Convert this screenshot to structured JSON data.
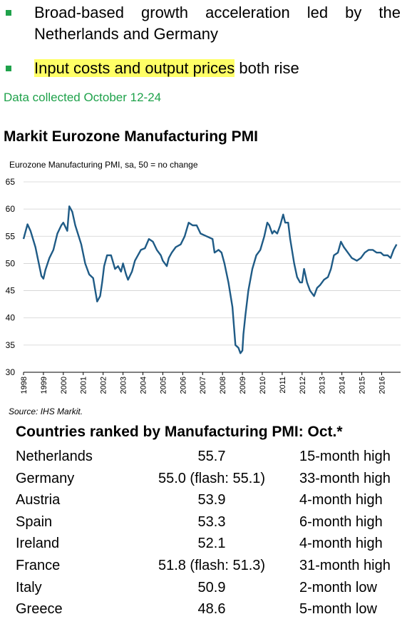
{
  "bullets": [
    {
      "line1": "Broad-based growth acceleration led by the",
      "line2": "Netherlands and Germany"
    },
    {
      "highlight": "Input costs and output prices",
      "rest": " both rise"
    }
  ],
  "data_collected": "Data collected October 12-24",
  "source": "Source: IHS Markit.",
  "colors": {
    "bullet": "#1fa24b",
    "line": "#1f5b86",
    "highlight": "#ffff66",
    "gridline": "#d0d0d0"
  },
  "chart_data": {
    "type": "line",
    "title": "Markit Eurozone Manufacturing PMI",
    "subtitle": "Eurozone Manufacturing PMI, sa, 50 = no change",
    "ylim": [
      30,
      65
    ],
    "yticks": [
      30,
      35,
      40,
      45,
      50,
      55,
      60,
      65
    ],
    "xlim": [
      1998.0,
      2016.95
    ],
    "xticks": [
      "1998",
      "1999",
      "2000",
      "2001",
      "2002",
      "2003",
      "2004",
      "2005",
      "2006",
      "2007",
      "2008",
      "2009",
      "2010",
      "2011",
      "2012",
      "2013",
      "2014",
      "2015",
      "2016"
    ],
    "grid": "horizontal",
    "series": [
      {
        "x": [
          1998.0,
          1998.2,
          1998.35,
          1998.6,
          1998.9,
          1999.0,
          1999.1,
          1999.3,
          1999.5,
          1999.7,
          1999.9,
          2000.0,
          2000.2,
          2000.3,
          2000.45,
          2000.6,
          2000.9,
          2001.1,
          2001.3,
          2001.5,
          2001.7,
          2001.85,
          2001.95,
          2002.05,
          2002.2,
          2002.4,
          2002.6,
          2002.75,
          2002.9,
          2003.0,
          2003.15,
          2003.25,
          2003.45,
          2003.6,
          2003.9,
          2004.1,
          2004.3,
          2004.5,
          2004.7,
          2004.9,
          2005.0,
          2005.2,
          2005.3,
          2005.45,
          2005.65,
          2005.9,
          2006.1,
          2006.3,
          2006.5,
          2006.7,
          2006.9,
          2007.2,
          2007.5,
          2007.6,
          2007.8,
          2007.95,
          2008.1,
          2008.3,
          2008.5,
          2008.65,
          2008.8,
          2008.9,
          2009.0,
          2009.05,
          2009.15,
          2009.3,
          2009.5,
          2009.7,
          2009.9,
          2010.1,
          2010.25,
          2010.35,
          2010.5,
          2010.6,
          2010.75,
          2010.9,
          2011.05,
          2011.15,
          2011.3,
          2011.4,
          2011.6,
          2011.75,
          2011.9,
          2012.0,
          2012.1,
          2012.25,
          2012.4,
          2012.6,
          2012.75,
          2012.9,
          2013.1,
          2013.3,
          2013.45,
          2013.6,
          2013.8,
          2013.95,
          2014.1,
          2014.3,
          2014.5,
          2014.75,
          2014.95,
          2015.15,
          2015.35,
          2015.55,
          2015.75,
          2015.95,
          2016.1,
          2016.3,
          2016.45,
          2016.6,
          2016.75
        ],
        "y": [
          54.5,
          57.2,
          56.0,
          53.0,
          47.7,
          47.2,
          48.8,
          51.0,
          52.5,
          55.5,
          57.0,
          57.5,
          56.0,
          60.5,
          59.5,
          57.0,
          53.5,
          50.0,
          48.0,
          47.3,
          43.0,
          44.0,
          46.5,
          49.5,
          51.5,
          51.5,
          49.0,
          49.5,
          48.5,
          50.0,
          48.0,
          47.0,
          48.5,
          50.5,
          52.5,
          52.8,
          54.5,
          54.0,
          52.5,
          51.5,
          50.5,
          49.5,
          51.0,
          52.0,
          53.0,
          53.5,
          55.0,
          57.5,
          57.0,
          57.0,
          55.5,
          55.0,
          54.5,
          52.0,
          52.5,
          52.0,
          50.0,
          46.5,
          42.0,
          35.0,
          34.5,
          33.5,
          34.0,
          37.0,
          40.5,
          45.0,
          49.0,
          51.5,
          52.5,
          55.0,
          57.5,
          57.0,
          55.5,
          56.0,
          55.5,
          57.0,
          59.0,
          57.5,
          57.5,
          54.5,
          50.0,
          47.5,
          46.5,
          46.5,
          49.0,
          46.5,
          45.0,
          44.0,
          45.5,
          46.0,
          47.0,
          47.5,
          49.0,
          51.5,
          52.0,
          54.0,
          53.0,
          52.0,
          51.0,
          50.5,
          51.0,
          52.0,
          52.5,
          52.5,
          52.0,
          52.0,
          51.5,
          51.5,
          51.0,
          52.5,
          53.5
        ]
      }
    ]
  },
  "ranking": {
    "title": "Countries ranked by Manufacturing PMI: Oct.*",
    "rows": [
      {
        "country": "Netherlands",
        "value": "55.7",
        "note": "15-month high"
      },
      {
        "country": "Germany",
        "value": "55.0 (flash: 55.1)",
        "note": "33-month high"
      },
      {
        "country": "Austria",
        "value": "53.9",
        "note": "4-month high"
      },
      {
        "country": "Spain",
        "value": "53.3",
        "note": "6-month high"
      },
      {
        "country": "Ireland",
        "value": "52.1",
        "note": "4-month high"
      },
      {
        "country": "France",
        "value": "51.8 (flash: 51.3)",
        "note": "31-month high"
      },
      {
        "country": "Italy",
        "value": "50.9",
        "note": "2-month low"
      },
      {
        "country": "Greece",
        "value": "48.6",
        "note": "5-month low"
      }
    ]
  }
}
